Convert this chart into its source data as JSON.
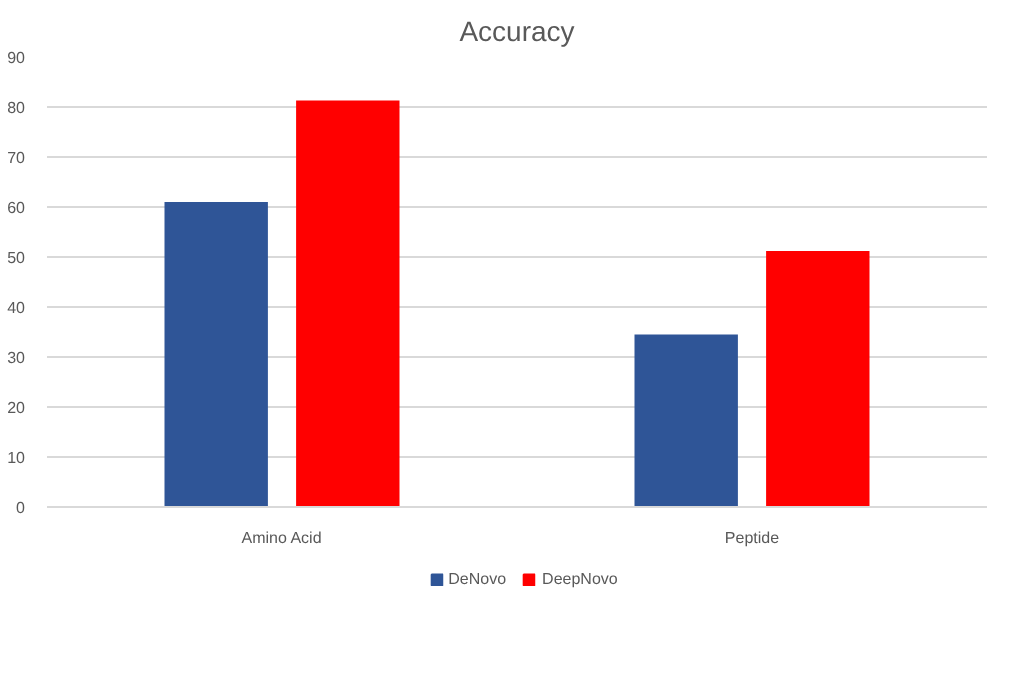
{
  "chart_data": {
    "type": "bar",
    "title": "Accuracy",
    "categories": [
      "Amino Acid",
      "Peptide"
    ],
    "series": [
      {
        "name": "DeNovo",
        "color": "#2f5597",
        "values": [
          61,
          34.5
        ]
      },
      {
        "name": "DeepNovo",
        "color": "#ff0000",
        "values": [
          81.3,
          51.2
        ]
      }
    ],
    "ylim": [
      0,
      90
    ],
    "yticks": [
      0,
      10,
      20,
      30,
      40,
      50,
      60,
      70,
      80,
      90
    ],
    "grid": "y",
    "legend": "bottom"
  }
}
